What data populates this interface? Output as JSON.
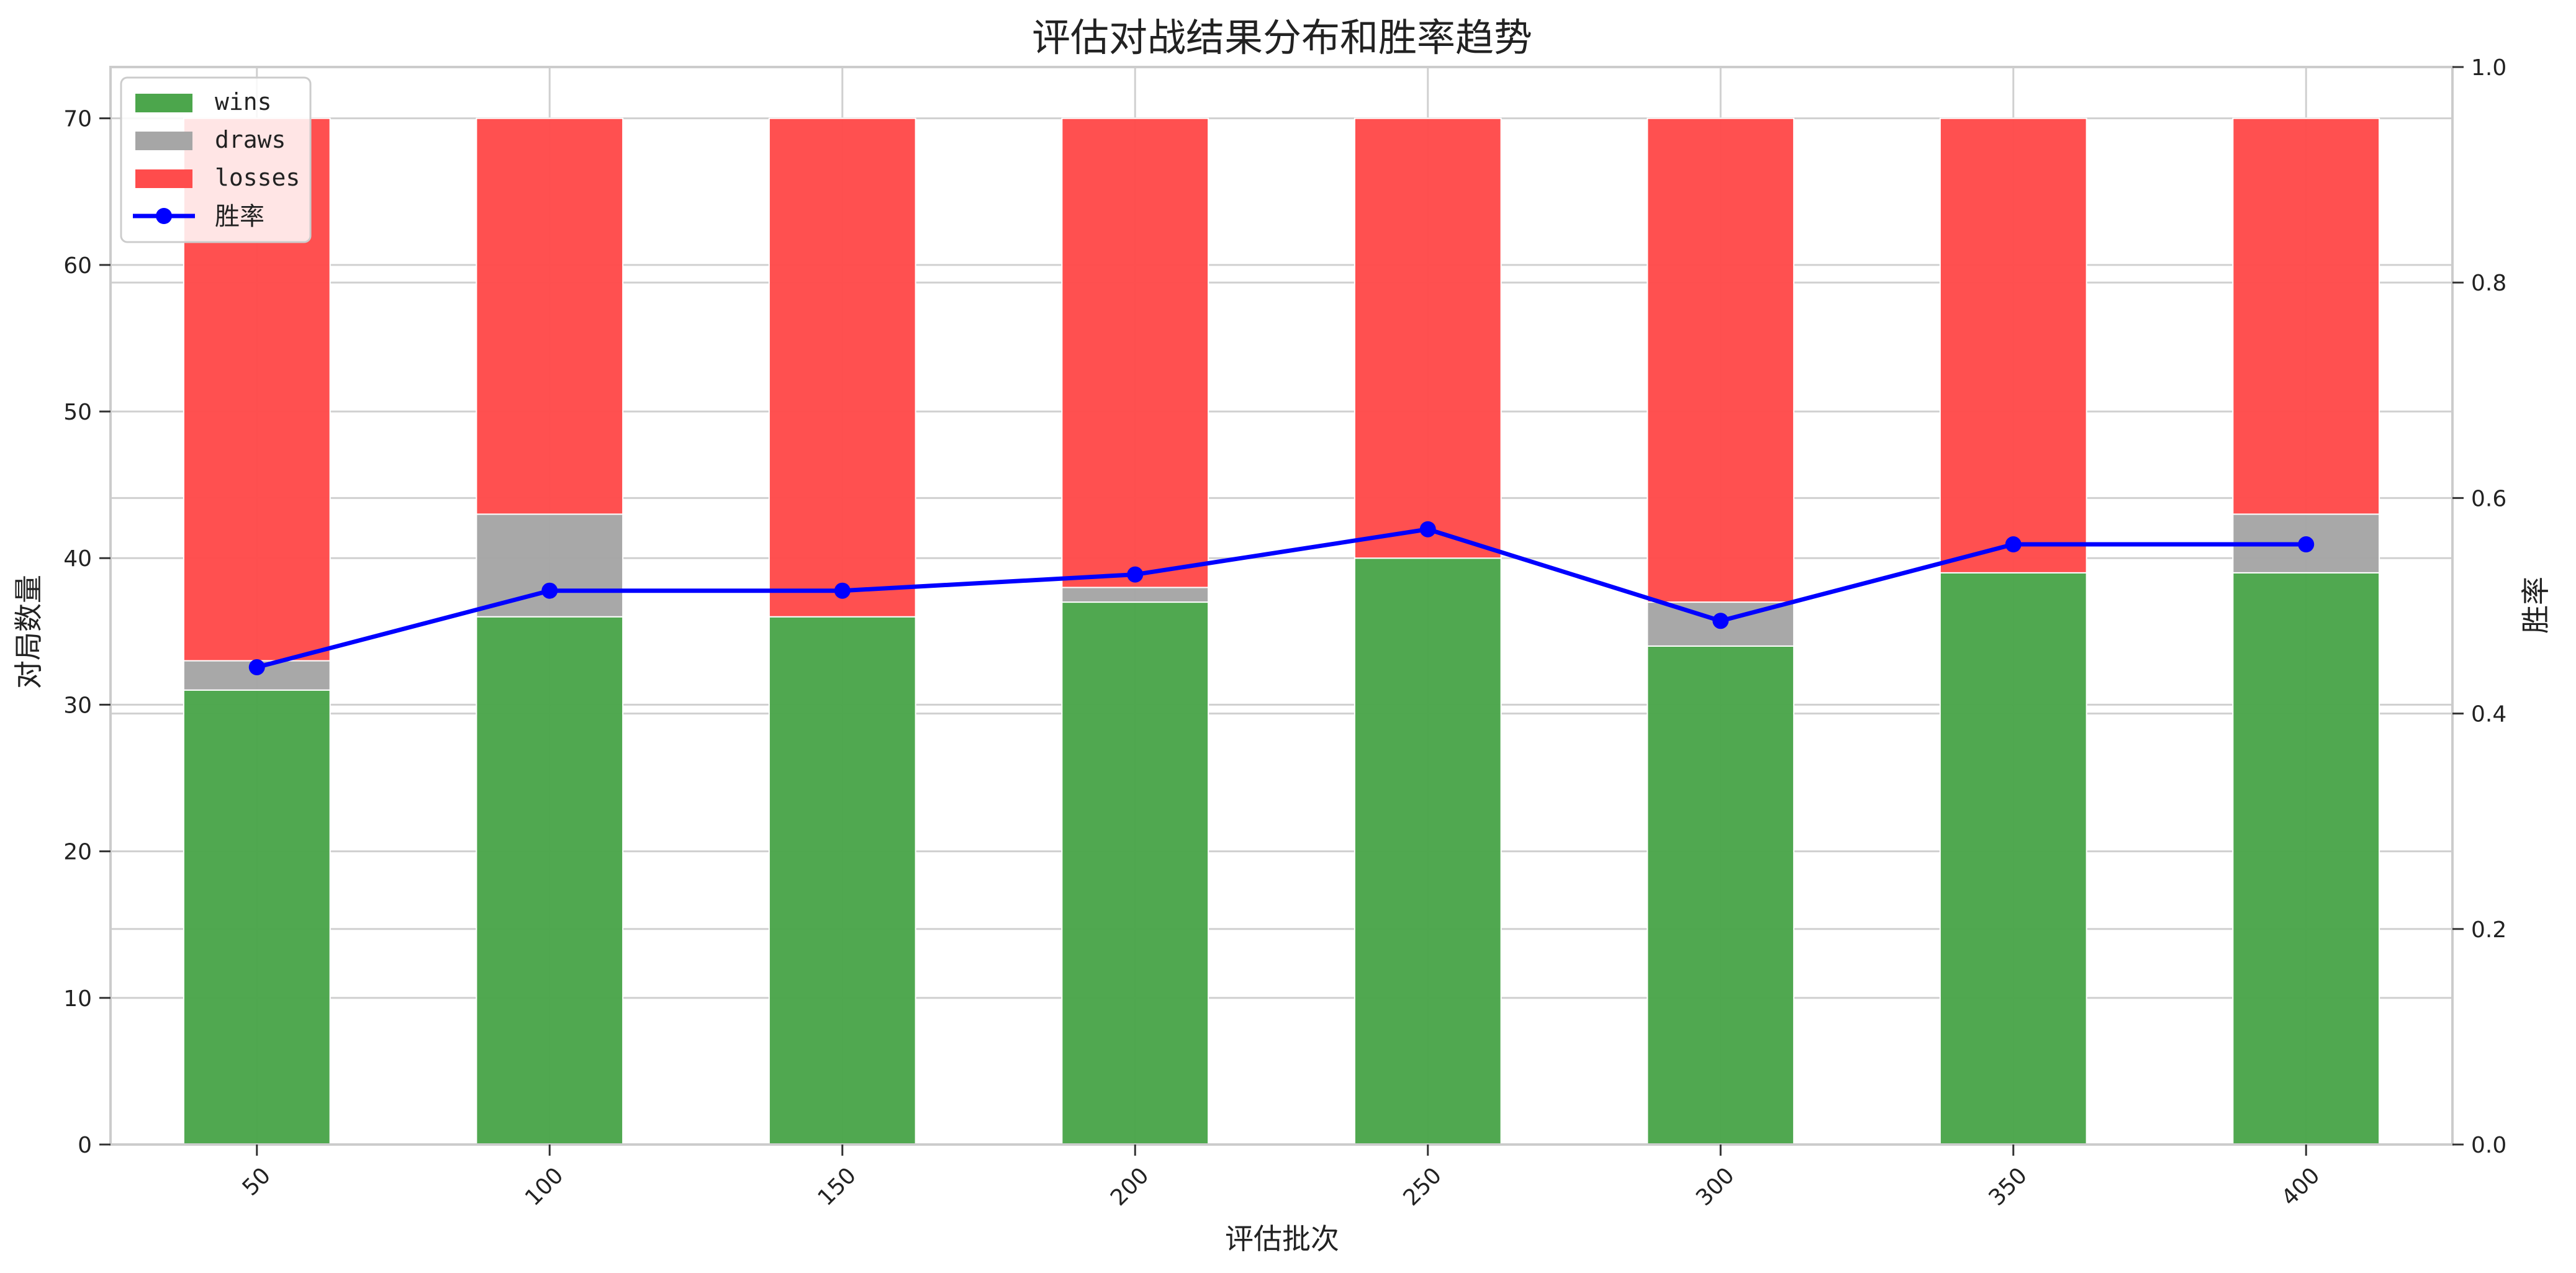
{
  "chart_data": {
    "type": "bar",
    "title": "评估对战结果分布和胜率趋势",
    "xlabel": "评估批次",
    "ylabel": "对局数量",
    "y2label": "胜率",
    "categories": [
      "50",
      "100",
      "150",
      "200",
      "250",
      "300",
      "350",
      "400"
    ],
    "stacked": true,
    "series": [
      {
        "name": "wins",
        "values": [
          31,
          36,
          36,
          37,
          40,
          34,
          39,
          39
        ],
        "color": "#4ca64c"
      },
      {
        "name": "draws",
        "values": [
          2,
          7,
          0,
          1,
          0,
          3,
          0,
          4
        ],
        "color": "#a6a6a6"
      },
      {
        "name": "losses",
        "values": [
          37,
          27,
          34,
          32,
          30,
          33,
          31,
          27
        ],
        "color": "#ff4c4c"
      }
    ],
    "line_series": {
      "name": "胜率",
      "axis": "right",
      "values": [
        0.443,
        0.514,
        0.514,
        0.529,
        0.571,
        0.486,
        0.557,
        0.557
      ],
      "color": "#0000ff"
    },
    "ylim": [
      0,
      73.5
    ],
    "y_ticks": [
      0,
      10,
      20,
      30,
      40,
      50,
      60,
      70
    ],
    "y2lim": [
      0,
      1.0
    ],
    "y2_ticks": [
      "0.0",
      "0.2",
      "0.4",
      "0.6",
      "0.8",
      "1.0"
    ],
    "grid": true,
    "legend": "top-left",
    "x_tick_rotation": 45
  }
}
